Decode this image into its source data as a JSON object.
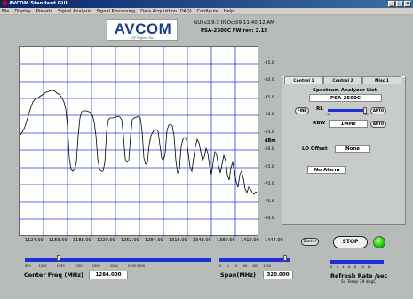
{
  "window": {
    "title": "AVCOM Standard GUI"
  },
  "menu": [
    "File",
    "Display",
    "Presets",
    "Signal Analysis",
    "Signal Processing",
    "Data Acquisition (DAQ)",
    "Configure",
    "Help"
  ],
  "logo": {
    "text": "AVCOM",
    "sub": "Of Virginia Inc."
  },
  "header": {
    "version": "GUI v2.9.3   09Oct09   11:40:12 AM",
    "fw": "PSA-2500C FW rev: 2.15"
  },
  "plot": {
    "y_unit": "dBm",
    "y_ticks": [
      "-35.0",
      "-40.0",
      "-45.0",
      "-50.0",
      "-55.0",
      "-60.0",
      "-65.0",
      "-70.0",
      "-75.0",
      "-80.0",
      "-85.0",
      "-90.0"
    ],
    "x_ticks": [
      "1124.00",
      "1156.00",
      "1188.00",
      "1220.00",
      "1252.00",
      "1284.00",
      "1316.00",
      "1348.00",
      "1380.00",
      "1412.00",
      "1444.00"
    ]
  },
  "tabs": [
    "Control 1",
    "Control 2",
    "Misc 1"
  ],
  "panel": {
    "sa_list_label": "Spectrum Analyzer List",
    "model": "PSA-2500C",
    "fine_label": "FINE",
    "rl_label": "RL",
    "rl_min": "-40",
    "rl_max": "-10",
    "auto_label": "AUTO",
    "rbw_label": "RBW",
    "rbw_value": "1MHz",
    "lo_label": "LO Offset",
    "lo_value": "None",
    "alarm": "No Alarm"
  },
  "center": {
    "label": "Center Freq (MHz)",
    "value": "1284.000",
    "ticks": [
      "950",
      "1200",
      "1450",
      "1700",
      "1950",
      "2200",
      "2450",
      "2500"
    ],
    "level": 0.18
  },
  "span": {
    "label": "Span(MHz)",
    "value": "320.000",
    "ticks": [
      "0",
      "1",
      "5",
      "50",
      "100",
      "1300"
    ],
    "level": 0.92
  },
  "refresh": {
    "label": "Refresh Rate /sec",
    "sub": "54 Temp 39 degC",
    "ticks": [
      "0",
      "2",
      "4",
      "6",
      "8",
      "10",
      "12"
    ]
  },
  "buttons": {
    "zoom": "Zoom",
    "stop": "STOP"
  }
}
